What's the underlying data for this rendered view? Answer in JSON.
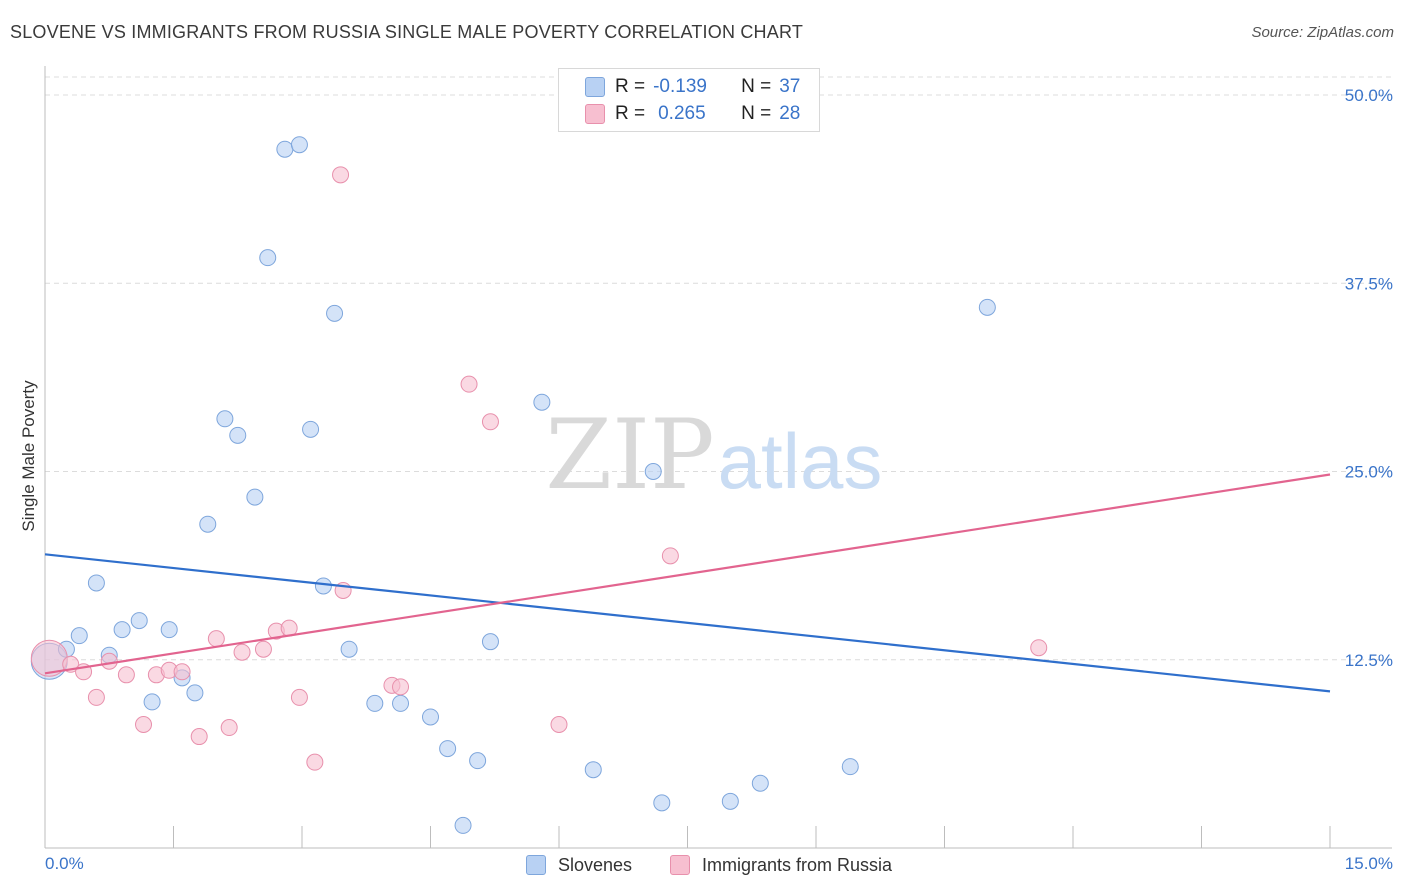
{
  "header": {
    "title": "SLOVENE VS IMMIGRANTS FROM RUSSIA SINGLE MALE POVERTY CORRELATION CHART",
    "source": "Source: ZipAtlas.com"
  },
  "legend": {
    "rows": [
      {
        "r_label": "R =",
        "r_value": "-0.139",
        "n_label": "N =",
        "n_value": "37"
      },
      {
        "r_label": "R =",
        "r_value": "0.265",
        "n_label": "N =",
        "n_value": "28"
      }
    ],
    "series_names": [
      "Slovenes",
      "Immigrants from Russia"
    ]
  },
  "watermark": {
    "zip": "ZIP",
    "atlas": "atlas"
  },
  "colors": {
    "blue_fill": "#b8d1f3",
    "blue_stroke": "#7ea6dc",
    "blue_line": "#2f6fcc",
    "pink_fill": "#f7bfd0",
    "pink_stroke": "#e890ac",
    "pink_line": "#e2648f",
    "tick_label": "#3a74c9",
    "grid": "#dcdcdc"
  },
  "chart_data": {
    "type": "scatter",
    "title": "SLOVENE VS IMMIGRANTS FROM RUSSIA SINGLE MALE POVERTY CORRELATION CHART",
    "xlabel": "",
    "ylabel": "Single Male Poverty",
    "xlim": [
      0,
      15
    ],
    "ylim": [
      0,
      50
    ],
    "x_tick_labels": [
      "0.0%",
      "15.0%"
    ],
    "y_ticks": [
      12.5,
      25.0,
      37.5,
      50.0
    ],
    "y_tick_labels": [
      "12.5%",
      "25.0%",
      "37.5%",
      "50.0%"
    ],
    "grid": "horizontal dashed",
    "legend_position": "top-center",
    "series": [
      {
        "name": "Slovenes",
        "r": -0.139,
        "n": 37,
        "trend": {
          "x": [
            0,
            15
          ],
          "y": [
            19.5,
            10.4
          ]
        },
        "points": [
          {
            "x": 0.05,
            "y": 12.4,
            "size": "large"
          },
          {
            "x": 0.25,
            "y": 13.2
          },
          {
            "x": 0.4,
            "y": 14.1
          },
          {
            "x": 0.6,
            "y": 17.6
          },
          {
            "x": 0.75,
            "y": 12.8
          },
          {
            "x": 0.9,
            "y": 14.5
          },
          {
            "x": 1.1,
            "y": 15.1
          },
          {
            "x": 1.25,
            "y": 9.7
          },
          {
            "x": 1.45,
            "y": 14.5
          },
          {
            "x": 1.6,
            "y": 11.3
          },
          {
            "x": 1.75,
            "y": 10.3
          },
          {
            "x": 1.9,
            "y": 21.5
          },
          {
            "x": 2.1,
            "y": 28.5
          },
          {
            "x": 2.25,
            "y": 27.4
          },
          {
            "x": 2.45,
            "y": 23.3
          },
          {
            "x": 2.6,
            "y": 39.2
          },
          {
            "x": 2.8,
            "y": 46.4
          },
          {
            "x": 2.97,
            "y": 46.7
          },
          {
            "x": 3.1,
            "y": 27.8
          },
          {
            "x": 3.25,
            "y": 17.4
          },
          {
            "x": 3.38,
            "y": 35.5
          },
          {
            "x": 3.55,
            "y": 13.2
          },
          {
            "x": 3.85,
            "y": 9.6
          },
          {
            "x": 4.15,
            "y": 9.6
          },
          {
            "x": 4.5,
            "y": 8.7
          },
          {
            "x": 4.7,
            "y": 6.6
          },
          {
            "x": 4.88,
            "y": 1.5
          },
          {
            "x": 5.05,
            "y": 5.8
          },
          {
            "x": 5.2,
            "y": 13.7
          },
          {
            "x": 5.8,
            "y": 29.6
          },
          {
            "x": 6.4,
            "y": 5.2
          },
          {
            "x": 7.1,
            "y": 25.0
          },
          {
            "x": 7.2,
            "y": 3.0
          },
          {
            "x": 8.0,
            "y": 3.1
          },
          {
            "x": 8.35,
            "y": 4.3
          },
          {
            "x": 9.4,
            "y": 5.4
          },
          {
            "x": 11.0,
            "y": 35.9
          }
        ]
      },
      {
        "name": "Immigrants from Russia",
        "r": 0.265,
        "n": 28,
        "trend": {
          "x": [
            0,
            15
          ],
          "y": [
            11.6,
            24.8
          ]
        },
        "points": [
          {
            "x": 0.05,
            "y": 12.6,
            "size": "large"
          },
          {
            "x": 0.3,
            "y": 12.2
          },
          {
            "x": 0.45,
            "y": 11.7
          },
          {
            "x": 0.6,
            "y": 10.0
          },
          {
            "x": 0.75,
            "y": 12.4
          },
          {
            "x": 0.95,
            "y": 11.5
          },
          {
            "x": 1.15,
            "y": 8.2
          },
          {
            "x": 1.3,
            "y": 11.5
          },
          {
            "x": 1.45,
            "y": 11.8
          },
          {
            "x": 1.6,
            "y": 11.7
          },
          {
            "x": 1.8,
            "y": 7.4
          },
          {
            "x": 2.0,
            "y": 13.9
          },
          {
            "x": 2.15,
            "y": 8.0
          },
          {
            "x": 2.3,
            "y": 13.0
          },
          {
            "x": 2.55,
            "y": 13.2
          },
          {
            "x": 2.7,
            "y": 14.4
          },
          {
            "x": 2.85,
            "y": 14.6
          },
          {
            "x": 2.97,
            "y": 10.0
          },
          {
            "x": 3.15,
            "y": 5.7
          },
          {
            "x": 3.45,
            "y": 44.7
          },
          {
            "x": 3.48,
            "y": 17.1
          },
          {
            "x": 4.05,
            "y": 10.8
          },
          {
            "x": 4.15,
            "y": 10.7
          },
          {
            "x": 4.95,
            "y": 30.8
          },
          {
            "x": 5.2,
            "y": 28.3
          },
          {
            "x": 6.0,
            "y": 8.2
          },
          {
            "x": 7.3,
            "y": 19.4
          },
          {
            "x": 11.6,
            "y": 13.3
          }
        ]
      }
    ]
  }
}
